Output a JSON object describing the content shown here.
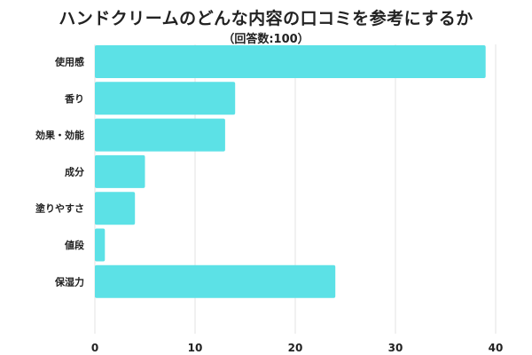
{
  "chart_data": {
    "type": "bar",
    "orientation": "horizontal",
    "title": "ハンドクリームのどんな内容の口コミを参考にするか",
    "subtitle": "（回答数:100）",
    "categories": [
      "使用感",
      "香り",
      "効果・効能",
      "成分",
      "塗りやすさ",
      "値段",
      "保湿力"
    ],
    "values": [
      39,
      14,
      13,
      5,
      4,
      1,
      24
    ],
    "xlim": [
      0,
      40
    ],
    "xticks": [
      "0",
      "10",
      "20",
      "30",
      "40"
    ],
    "grid": true,
    "bar_color": "#5ce1e6",
    "xlabel": "",
    "ylabel": ""
  }
}
